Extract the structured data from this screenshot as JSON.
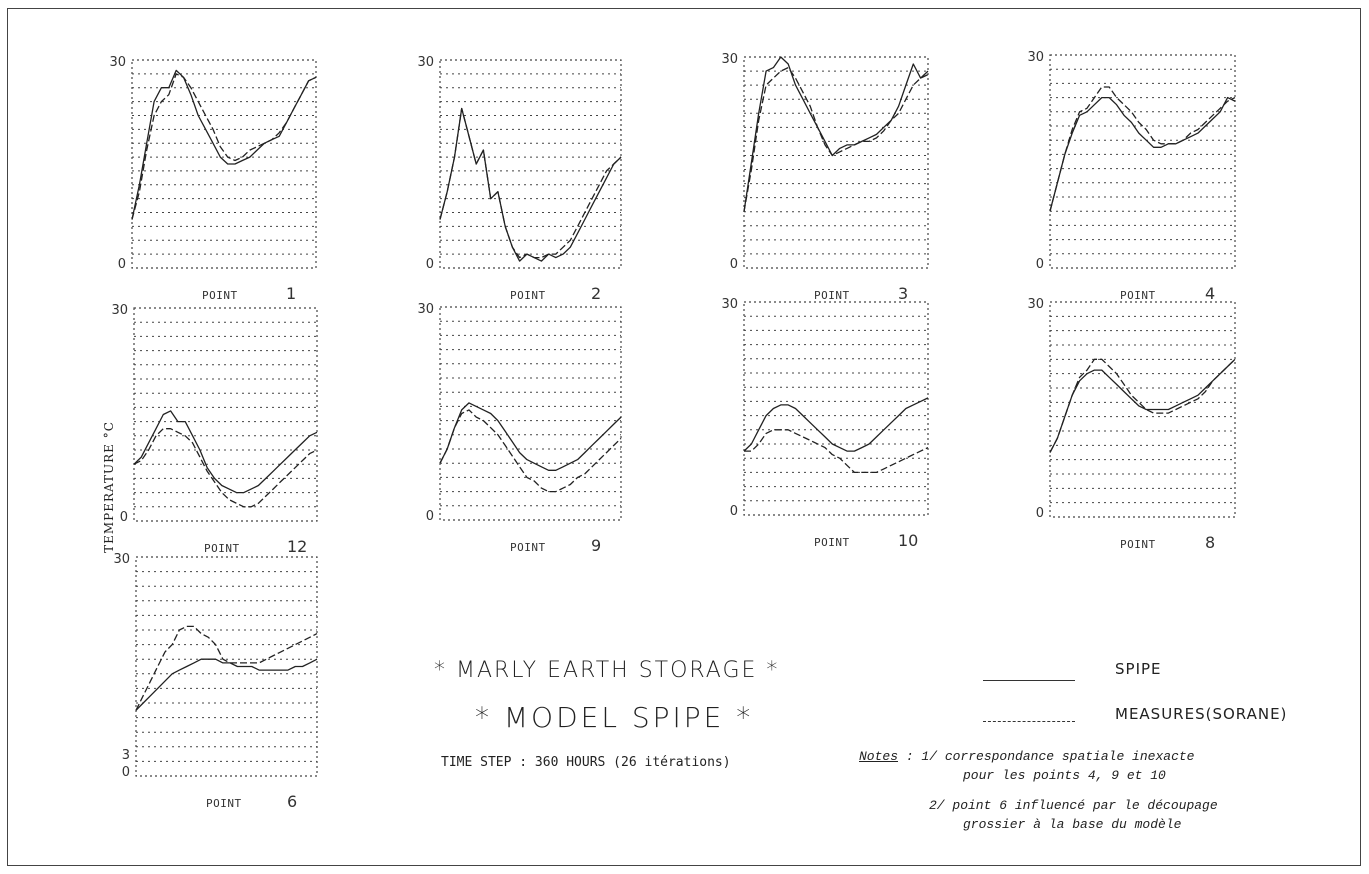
{
  "y_axis_label": "TEMPERATURE °C",
  "title_line1": "* MARLY EARTH STORAGE *",
  "title_line2": "* MODEL SPIPE *",
  "time_step": "TIME STEP : 360 HOURS (26 itérations)",
  "legend": [
    {
      "label": "SPIPE",
      "style": "solid"
    },
    {
      "label": "MEASURES(SORANE)",
      "style": "dashed"
    }
  ],
  "notes": {
    "heading": "Notes",
    "lines": [
      "1/ correspondance spatiale inexacte",
      "pour les points 4, 9 et 10",
      "2/ point 6 influencé par le découpage",
      "grossier à la base du modèle"
    ]
  },
  "colors": {
    "line": "#222222",
    "grid": "#444444",
    "border": "#444444"
  },
  "chart_data": [
    {
      "type": "line",
      "point_label": "POINT",
      "point_number": "1",
      "ylim": [
        0,
        30
      ],
      "yticks": [
        "0",
        "30"
      ],
      "grid": "dotted horizontal",
      "x": [
        0,
        1,
        2,
        3,
        4,
        5,
        6,
        7,
        8,
        9,
        10,
        11,
        12,
        13,
        14,
        15,
        16,
        17,
        18,
        19,
        20,
        21,
        22,
        23,
        24,
        25
      ],
      "series": [
        {
          "name": "SPIPE",
          "style": "solid",
          "values": [
            7,
            12,
            18,
            24,
            26,
            26,
            28.5,
            27.5,
            25,
            22,
            20,
            18,
            16,
            15,
            15,
            15.5,
            16,
            17,
            18,
            18.5,
            19,
            21,
            23,
            25,
            27,
            27.5
          ]
        },
        {
          "name": "MEASURES(SORANE)",
          "style": "dashed",
          "values": [
            7,
            11,
            17,
            22,
            24,
            25,
            28,
            27.5,
            26,
            24,
            22,
            20,
            17.5,
            16,
            15.5,
            16,
            17,
            17.5,
            18,
            18.5,
            19.5,
            21,
            23,
            25,
            27,
            27.5
          ]
        }
      ]
    },
    {
      "type": "line",
      "point_label": "POINT",
      "point_number": "2",
      "ylim": [
        0,
        30
      ],
      "yticks": [
        "0",
        "30"
      ],
      "grid": "dotted horizontal",
      "x": [
        0,
        1,
        2,
        3,
        4,
        5,
        6,
        7,
        8,
        9,
        10,
        11,
        12,
        13,
        14,
        15,
        16,
        17,
        18,
        19,
        20,
        21,
        22,
        23,
        24,
        25
      ],
      "series": [
        {
          "name": "SPIPE",
          "style": "solid",
          "values": [
            7,
            11,
            16,
            23,
            19,
            15,
            17,
            10,
            11,
            6,
            3,
            1,
            2,
            1.5,
            1,
            2,
            1.5,
            2,
            3,
            5,
            7,
            9,
            11,
            13,
            15,
            16
          ]
        },
        {
          "name": "MEASURES(SORANE)",
          "style": "dashed",
          "values": [
            7,
            11,
            16,
            23,
            19,
            15,
            17,
            10,
            11,
            6,
            3,
            1.5,
            2,
            1.5,
            1.5,
            2,
            2,
            3,
            4,
            6,
            8,
            10,
            12,
            14,
            15,
            16
          ]
        }
      ]
    },
    {
      "type": "line",
      "point_label": "POINT",
      "point_number": "3",
      "ylim": [
        0,
        30
      ],
      "yticks": [
        "0",
        "30"
      ],
      "grid": "dotted horizontal",
      "x": [
        0,
        1,
        2,
        3,
        4,
        5,
        6,
        7,
        8,
        9,
        10,
        11,
        12,
        13,
        14,
        15,
        16,
        17,
        18,
        19,
        20,
        21,
        22,
        23,
        24,
        25
      ],
      "series": [
        {
          "name": "SPIPE",
          "style": "solid",
          "values": [
            8,
            15,
            22,
            28,
            28.5,
            30,
            29,
            26,
            24,
            22,
            20,
            18,
            16,
            17,
            17.5,
            17.5,
            18,
            18.5,
            19,
            20,
            21,
            23,
            26,
            29,
            27,
            28
          ]
        },
        {
          "name": "MEASURES(SORANE)",
          "style": "dashed",
          "values": [
            8,
            14,
            21,
            26,
            27,
            28,
            28.5,
            27,
            25,
            23,
            20,
            17.5,
            16,
            16.5,
            17,
            17.5,
            18,
            18,
            18.5,
            19.5,
            21,
            22,
            24,
            26,
            27,
            27.5
          ]
        }
      ]
    },
    {
      "type": "line",
      "point_label": "POINT",
      "point_number": "4",
      "ylim": [
        0,
        30
      ],
      "yticks": [
        "0",
        "30"
      ],
      "grid": "dotted horizontal",
      "x": [
        0,
        1,
        2,
        3,
        4,
        5,
        6,
        7,
        8,
        9,
        10,
        11,
        12,
        13,
        14,
        15,
        16,
        17,
        18,
        19,
        20,
        21,
        22,
        23,
        24,
        25
      ],
      "series": [
        {
          "name": "SPIPE",
          "style": "solid",
          "values": [
            8,
            12,
            16,
            19,
            21.5,
            22,
            23,
            24,
            24,
            23,
            21.5,
            20.5,
            19,
            18,
            17,
            17,
            17.5,
            17.5,
            18,
            18.5,
            19,
            20,
            21,
            22,
            24,
            23.5
          ]
        },
        {
          "name": "MEASURES(SORANE)",
          "style": "dashed",
          "values": [
            8,
            12,
            16,
            19.5,
            22,
            22.5,
            24,
            25.5,
            25.5,
            24,
            23,
            22,
            20.5,
            19.5,
            18,
            17.5,
            17.5,
            17.5,
            18,
            19,
            19.5,
            20.5,
            21.5,
            22.5,
            23.5,
            24
          ]
        }
      ]
    },
    {
      "type": "line",
      "point_label": "POINT",
      "point_number": "12",
      "ylim": [
        0,
        30
      ],
      "yticks": [
        "0",
        "30"
      ],
      "grid": "dotted horizontal",
      "x": [
        0,
        1,
        2,
        3,
        4,
        5,
        6,
        7,
        8,
        9,
        10,
        11,
        12,
        13,
        14,
        15,
        16,
        17,
        18,
        19,
        20,
        21,
        22,
        23,
        24,
        25
      ],
      "series": [
        {
          "name": "SPIPE",
          "style": "solid",
          "values": [
            8,
            9,
            11,
            13,
            15,
            15.5,
            14,
            14,
            12,
            10,
            7.5,
            6,
            5,
            4.5,
            4,
            4,
            4.5,
            5,
            6,
            7,
            8,
            9,
            10,
            11,
            12,
            12.5
          ]
        },
        {
          "name": "MEASURES(SORANE)",
          "style": "dashed",
          "values": [
            8,
            8.5,
            10,
            12,
            13,
            13,
            12.5,
            12,
            11,
            9,
            7,
            5.5,
            4,
            3,
            2.5,
            2,
            2,
            2.5,
            3.5,
            4.5,
            5.5,
            6.5,
            7.5,
            8.5,
            9.5,
            10
          ]
        }
      ]
    },
    {
      "type": "line",
      "point_label": "POINT",
      "point_number": "9",
      "ylim": [
        0,
        30
      ],
      "yticks": [
        "0",
        "30"
      ],
      "grid": "dotted horizontal",
      "x": [
        0,
        1,
        2,
        3,
        4,
        5,
        6,
        7,
        8,
        9,
        10,
        11,
        12,
        13,
        14,
        15,
        16,
        17,
        18,
        19,
        20,
        21,
        22,
        23,
        24,
        25
      ],
      "series": [
        {
          "name": "SPIPE",
          "style": "solid",
          "values": [
            8,
            10,
            13,
            15.5,
            16.5,
            16,
            15.5,
            15,
            14,
            12.5,
            11,
            9.5,
            8.5,
            8,
            7.5,
            7,
            7,
            7.5,
            8,
            8.5,
            9.5,
            10.5,
            11.5,
            12.5,
            13.5,
            14.5
          ]
        },
        {
          "name": "MEASURES(SORANE)",
          "style": "dashed",
          "values": [
            8,
            10,
            13,
            15,
            15.5,
            14.5,
            14,
            13,
            12,
            10.5,
            9,
            7.5,
            6,
            5.5,
            4.5,
            4,
            4,
            4.5,
            5,
            6,
            6.5,
            7.5,
            8.5,
            9.5,
            10.5,
            11.5
          ]
        }
      ]
    },
    {
      "type": "line",
      "point_label": "POINT",
      "point_number": "10",
      "ylim": [
        0,
        30
      ],
      "yticks": [
        "0",
        "30"
      ],
      "grid": "dotted horizontal",
      "x": [
        0,
        1,
        2,
        3,
        4,
        5,
        6,
        7,
        8,
        9,
        10,
        11,
        12,
        13,
        14,
        15,
        16,
        17,
        18,
        19,
        20,
        21,
        22,
        23,
        24,
        25
      ],
      "series": [
        {
          "name": "SPIPE",
          "style": "solid",
          "values": [
            9,
            10,
            12,
            14,
            15,
            15.5,
            15.5,
            15,
            14,
            13,
            12,
            11,
            10,
            9.5,
            9,
            9,
            9.5,
            10,
            11,
            12,
            13,
            14,
            15,
            15.5,
            16,
            16.5
          ]
        },
        {
          "name": "MEASURES(SORANE)",
          "style": "dashed",
          "values": [
            9,
            9,
            10,
            11.5,
            12,
            12,
            12,
            11.5,
            11,
            10.5,
            10,
            9.5,
            8.5,
            8,
            7,
            6,
            6,
            6,
            6,
            6.5,
            7,
            7.5,
            8,
            8.5,
            9,
            9.5
          ]
        }
      ]
    },
    {
      "type": "line",
      "point_label": "POINT",
      "point_number": "8",
      "ylim": [
        0,
        30
      ],
      "yticks": [
        "0",
        "30"
      ],
      "grid": "dotted horizontal",
      "x": [
        0,
        1,
        2,
        3,
        4,
        5,
        6,
        7,
        8,
        9,
        10,
        11,
        12,
        13,
        14,
        15,
        16,
        17,
        18,
        19,
        20,
        21,
        22,
        23,
        24,
        25
      ],
      "series": [
        {
          "name": "SPIPE",
          "style": "solid",
          "values": [
            9,
            11,
            14,
            17,
            19,
            20,
            20.5,
            20.5,
            19.5,
            18.5,
            17.5,
            16.5,
            15.5,
            15,
            15,
            15,
            15,
            15.5,
            16,
            16.5,
            17,
            18,
            19,
            20,
            21,
            22
          ]
        },
        {
          "name": "MEASURES(SORANE)",
          "style": "dashed",
          "values": [
            9,
            11,
            14,
            17,
            19.5,
            20.5,
            22,
            22,
            21,
            20,
            18.5,
            17,
            16,
            15,
            14.5,
            14.5,
            14.5,
            15,
            15.5,
            16,
            16.5,
            17.5,
            19,
            20,
            21,
            22
          ]
        }
      ]
    },
    {
      "type": "line",
      "point_label": "POINT",
      "point_number": "6",
      "ylim": [
        0,
        30
      ],
      "yticks": [
        "0",
        "3",
        "30"
      ],
      "grid": "dotted horizontal",
      "x": [
        0,
        1,
        2,
        3,
        4,
        5,
        6,
        7,
        8,
        9,
        10,
        11,
        12,
        13,
        14,
        15,
        16,
        17,
        18,
        19,
        20,
        21,
        22,
        23,
        24,
        25
      ],
      "series": [
        {
          "name": "SPIPE",
          "style": "solid",
          "values": [
            9,
            10,
            11,
            12,
            13,
            14,
            14.5,
            15,
            15.5,
            16,
            16,
            16,
            15.5,
            15.5,
            15,
            15,
            15,
            14.5,
            14.5,
            14.5,
            14.5,
            14.5,
            15,
            15,
            15.5,
            16
          ]
        },
        {
          "name": "MEASURES(SORANE)",
          "style": "dashed",
          "values": [
            9,
            11,
            13,
            15,
            17,
            18,
            20,
            20.5,
            20.5,
            19.5,
            19,
            18,
            16,
            15.5,
            15.5,
            15.5,
            15.5,
            15.5,
            16,
            16.5,
            17,
            17.5,
            18,
            18.5,
            19,
            19.5
          ]
        }
      ]
    }
  ]
}
